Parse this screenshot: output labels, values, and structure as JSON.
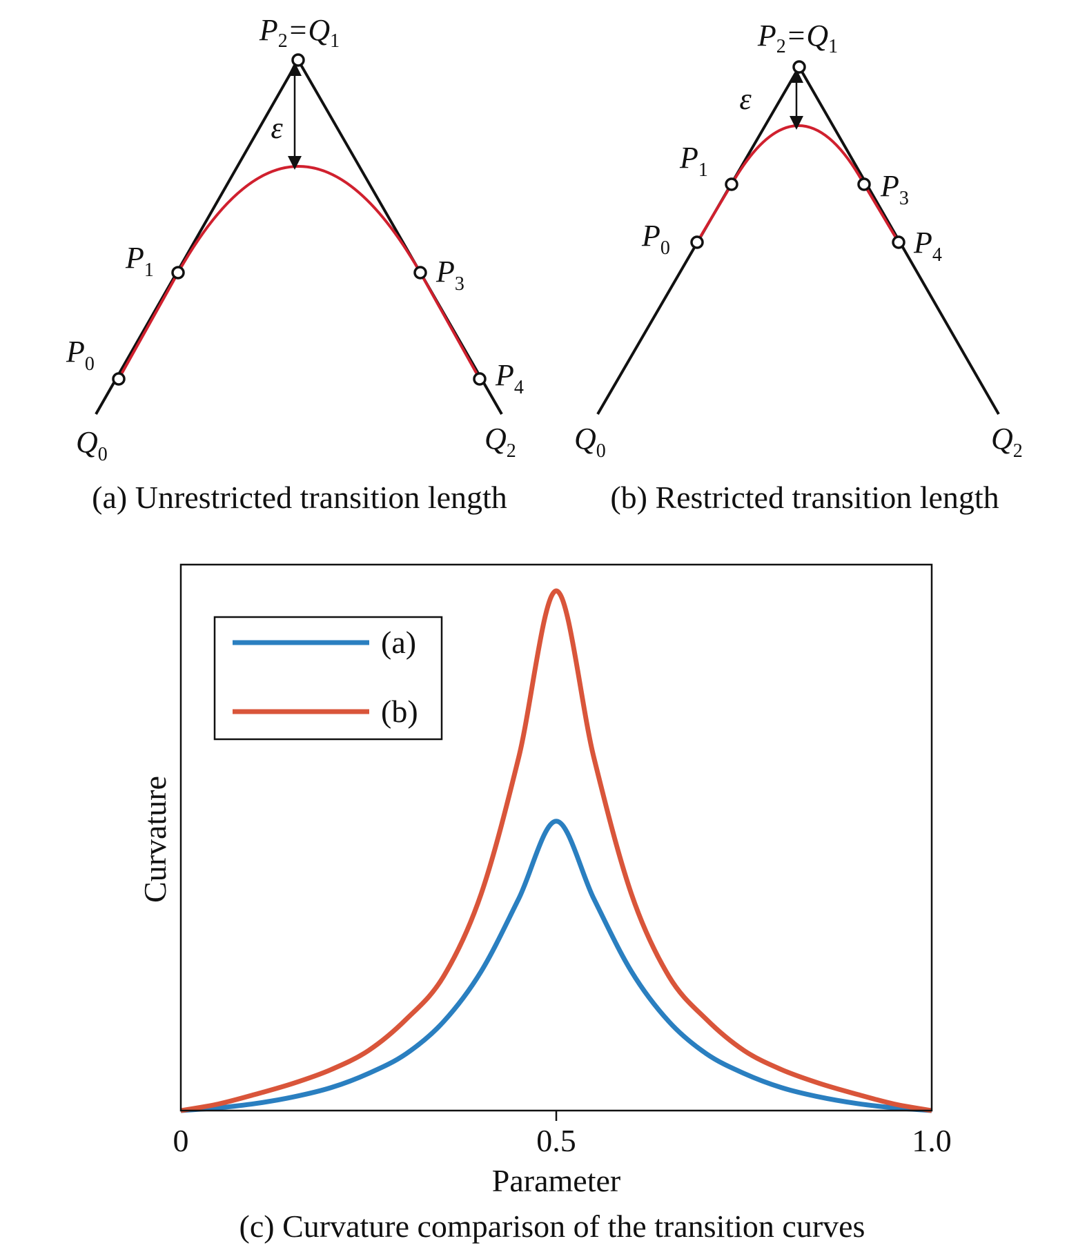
{
  "panel_a": {
    "caption": "(a) Unrestricted transition length",
    "apex_label": {
      "p": "P",
      "p_sub": "2",
      "eq": "=Q",
      "q_sub": "1"
    },
    "epsilon": "ε",
    "points": [
      {
        "base": "P",
        "sub": "0"
      },
      {
        "base": "P",
        "sub": "1"
      },
      {
        "base": "P",
        "sub": "3"
      },
      {
        "base": "P",
        "sub": "4"
      }
    ],
    "ends": [
      {
        "base": "Q",
        "sub": "0"
      },
      {
        "base": "Q",
        "sub": "2"
      }
    ]
  },
  "panel_b": {
    "caption": "(b) Restricted transition length",
    "apex_label": {
      "p": "P",
      "p_sub": "2",
      "eq": "=Q",
      "q_sub": "1"
    },
    "epsilon": "ε",
    "points": [
      {
        "base": "P",
        "sub": "0"
      },
      {
        "base": "P",
        "sub": "1"
      },
      {
        "base": "P",
        "sub": "3"
      },
      {
        "base": "P",
        "sub": "4"
      }
    ],
    "ends": [
      {
        "base": "Q",
        "sub": "0"
      },
      {
        "base": "Q",
        "sub": "2"
      }
    ]
  },
  "colors": {
    "polyline": "#111111",
    "transition_curve": "#d0202e",
    "series_a": "#2a7fc0",
    "series_b": "#d9553a"
  },
  "chart_data": {
    "type": "line",
    "caption": "(c) Curvature comparison of the transition curves",
    "xlabel": "Parameter",
    "ylabel": "Curvature",
    "xlim": [
      0,
      1.0
    ],
    "ylim": [
      0,
      1
    ],
    "xticks": [
      "0",
      "0.5",
      "1.0"
    ],
    "yticks": [],
    "grid": false,
    "legend": "top-left",
    "x": [
      0,
      0.05,
      0.1,
      0.15,
      0.2,
      0.25,
      0.3,
      0.35,
      0.4,
      0.45,
      0.5,
      0.55,
      0.6,
      0.65,
      0.7,
      0.75,
      0.8,
      0.85,
      0.9,
      0.95,
      1.0
    ],
    "series": [
      {
        "name": "(a)",
        "values": [
          0,
          0.005,
          0.013,
          0.025,
          0.042,
          0.068,
          0.104,
          0.163,
          0.255,
          0.388,
          0.53,
          0.388,
          0.255,
          0.163,
          0.104,
          0.068,
          0.042,
          0.025,
          0.013,
          0.005,
          0
        ]
      },
      {
        "name": "(b)",
        "values": [
          0,
          0.012,
          0.03,
          0.05,
          0.075,
          0.11,
          0.167,
          0.246,
          0.397,
          0.647,
          0.952,
          0.647,
          0.397,
          0.246,
          0.167,
          0.11,
          0.075,
          0.05,
          0.03,
          0.012,
          0
        ]
      }
    ]
  }
}
